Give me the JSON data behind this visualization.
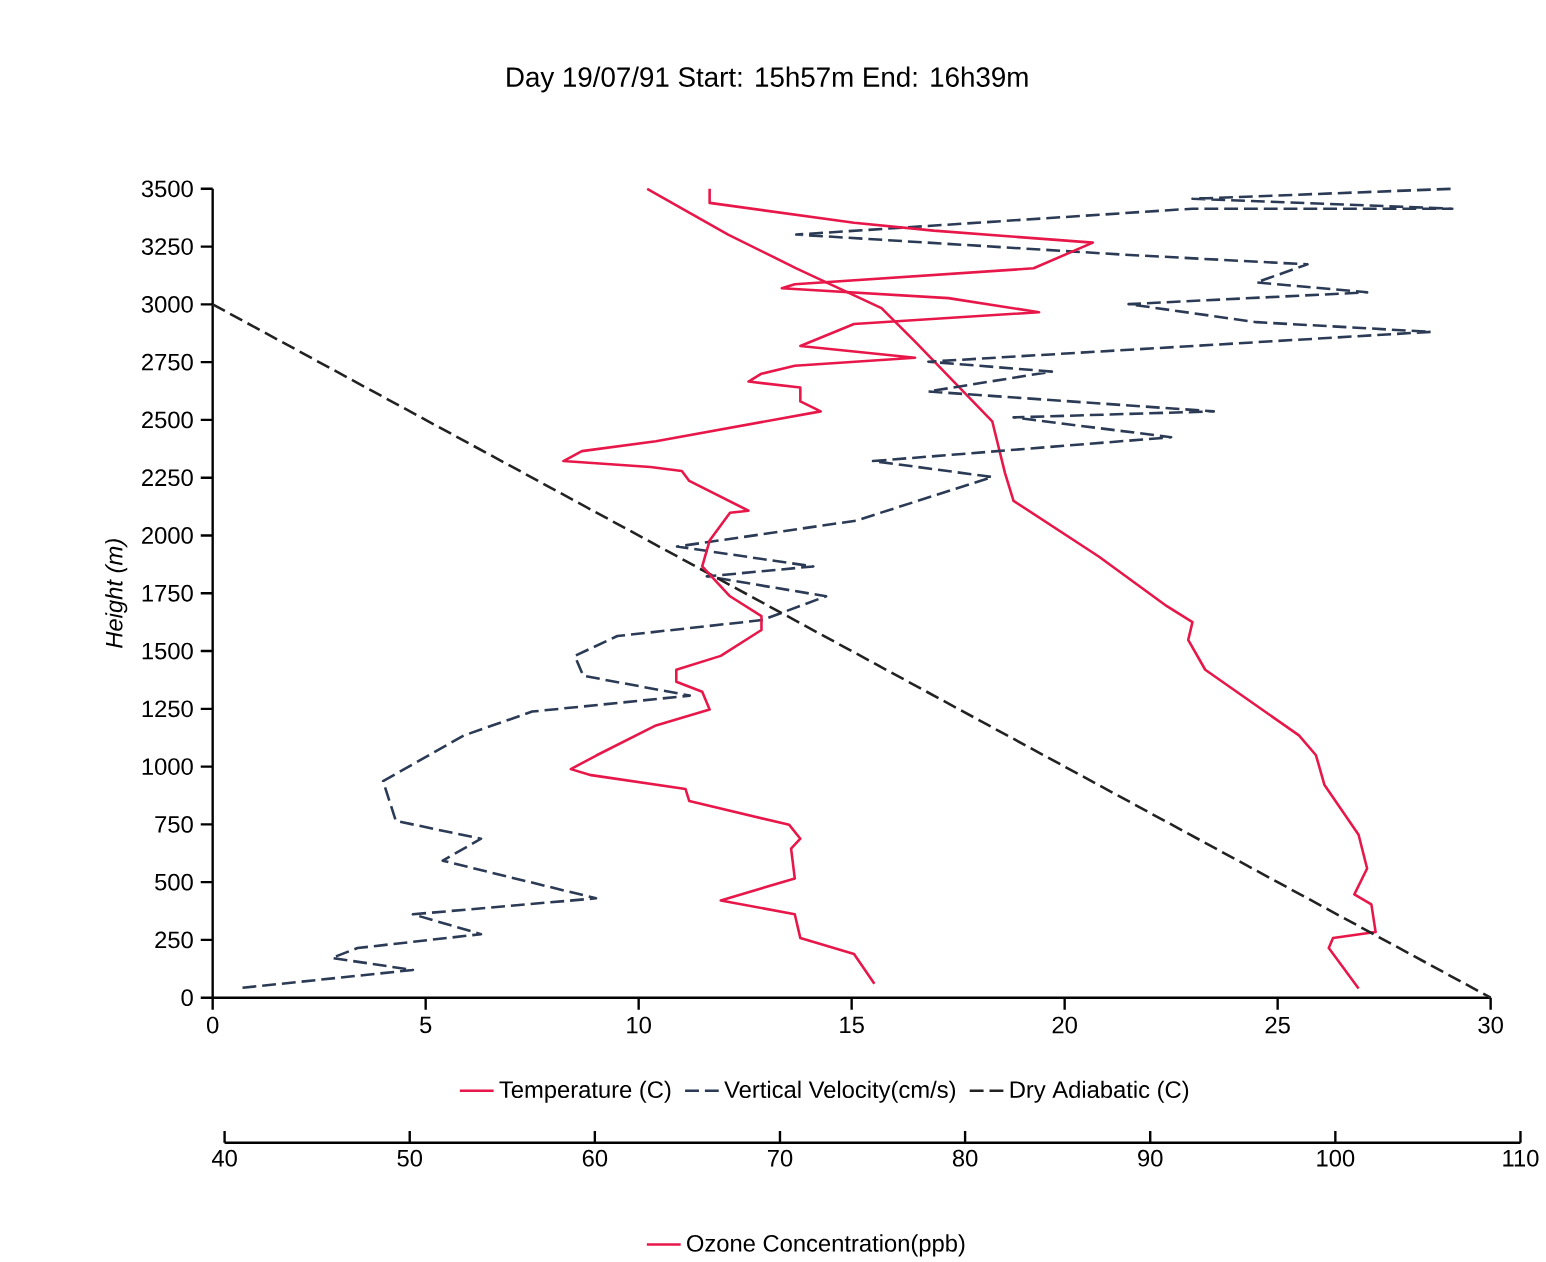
{
  "chart_data": {
    "type": "line",
    "title": "Day 19/07/91  Start: 15h57m   End: 16h39m",
    "ylabel": "Height  (m)",
    "xlim": [
      0,
      30
    ],
    "xticks": [
      0,
      5,
      10,
      15,
      20,
      25,
      30
    ],
    "ylim": [
      0,
      3500
    ],
    "yticks": [
      0,
      250,
      500,
      750,
      1000,
      1250,
      1500,
      1750,
      2000,
      2250,
      2500,
      2750,
      3000,
      3250,
      3500
    ],
    "x2lim": [
      40,
      110
    ],
    "x2ticks": [
      40,
      50,
      60,
      70,
      80,
      90,
      100,
      110
    ],
    "legend": "bottom",
    "series": [
      {
        "name": "Temperature (C)",
        "color": "#e8174a",
        "line_style": "solid",
        "x": [
          26.9,
          26.2,
          26.3,
          27.3,
          27.2,
          26.8,
          27.1,
          26.9,
          26.1,
          25.9,
          25.5,
          23.3,
          22.9,
          23.0,
          22.4,
          20.8,
          18.8,
          18.6,
          18.3,
          16.5,
          15.7,
          13.7,
          12.1,
          10.2
        ],
        "values": [
          40,
          215,
          258,
          284,
          404,
          447,
          559,
          705,
          920,
          1049,
          1135,
          1419,
          1548,
          1625,
          1694,
          1909,
          2150,
          2270,
          2494,
          2837,
          2984,
          3156,
          3302,
          3500
        ]
      },
      {
        "name": "Vertical Velocity(cm/s)",
        "color": "#2b3a55",
        "line_style": "dashed",
        "x": [
          0.7,
          4.7,
          2.8,
          3.4,
          6.3,
          4.7,
          9.0,
          5.4,
          6.3,
          4.3,
          4.0,
          5.9,
          7.5,
          11.2,
          8.7,
          8.5,
          9.5,
          12.9,
          14.4,
          11.6,
          14.1,
          10.9,
          15.1,
          18.3,
          15.5,
          22.5,
          18.8,
          23.5,
          16.8,
          19.7,
          16.8,
          28.6,
          24.5,
          21.5,
          27.1,
          24.5,
          25.7,
          21.3,
          13.7,
          23.0,
          29.1,
          23.0,
          29.1
        ],
        "values": [
          43,
          120,
          172,
          215,
          275,
          361,
          430,
          593,
          688,
          765,
          937,
          1135,
          1238,
          1307,
          1393,
          1479,
          1565,
          1634,
          1737,
          1823,
          1866,
          1952,
          2064,
          2253,
          2322,
          2425,
          2511,
          2537,
          2623,
          2709,
          2752,
          2881,
          2923,
          3001,
          3052,
          3095,
          3173,
          3216,
          3302,
          3414,
          3414,
          3457,
          3500
        ]
      },
      {
        "name": "Dry Adiabatic (C)",
        "color": "#222222",
        "line_style": "dashed",
        "x": [
          0,
          30
        ],
        "values": [
          3000,
          0
        ]
      },
      {
        "name": "Ozone Concentration(ppb)",
        "color": "#e8174a",
        "line_style": "solid",
        "axis": "x2",
        "x": [
          75.1,
          74.0,
          71.1,
          70.8,
          66.8,
          70.8,
          70.6,
          71.1,
          70.5,
          65.1,
          64.9,
          59.8,
          58.7,
          60.1,
          63.3,
          66.2,
          65.8,
          64.4,
          64.4,
          66.8,
          69.0,
          69.0,
          67.3,
          65.8,
          66.2,
          67.3,
          68.3,
          65.1,
          64.7,
          63.0,
          58.3,
          59.3,
          63.3,
          72.2,
          71.1,
          71.1,
          68.3,
          69.0,
          70.8,
          77.3,
          71.1,
          74.0,
          84.0,
          79.1,
          70.1,
          70.8,
          83.7,
          86.9,
          78.3,
          74.0,
          66.2,
          66.2
        ],
        "values": [
          60,
          189,
          258,
          361,
          421,
          516,
          645,
          688,
          748,
          851,
          903,
          963,
          989,
          1049,
          1178,
          1247,
          1324,
          1367,
          1419,
          1479,
          1591,
          1651,
          1737,
          1866,
          1978,
          2098,
          2107,
          2236,
          2279,
          2296,
          2322,
          2365,
          2408,
          2537,
          2580,
          2640,
          2666,
          2700,
          2734,
          2769,
          2820,
          2915,
          2966,
          3027,
          3070,
          3087,
          3156,
          3267,
          3319,
          3353,
          3439,
          3500
        ]
      }
    ]
  }
}
